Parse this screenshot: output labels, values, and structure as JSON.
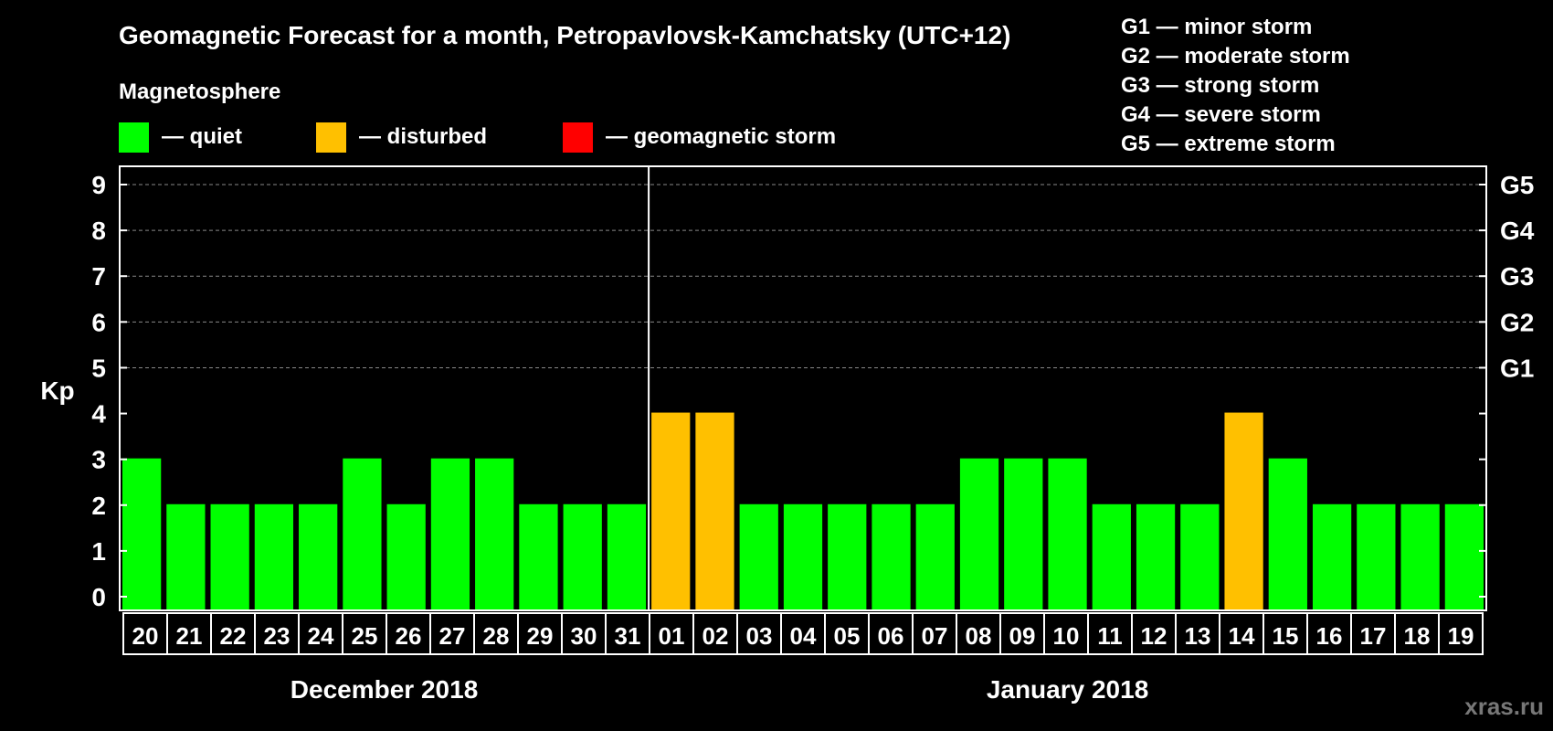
{
  "chart_data": {
    "type": "bar",
    "title": "Geomagnetic Forecast for a month, Petropavlovsk-Kamchatsky (UTC+12)",
    "legend_title": "Magnetosphere",
    "legend": [
      {
        "key": "quiet",
        "label": "— quiet",
        "color": "#00ff00"
      },
      {
        "key": "disturbed",
        "label": "— disturbed",
        "color": "#ffc000"
      },
      {
        "key": "storm",
        "label": "— geomagnetic storm",
        "color": "#ff0000"
      }
    ],
    "storm_scale": [
      "G1 — minor storm",
      "G2 — moderate storm",
      "G3 — strong storm",
      "G4 — severe storm",
      "G5 — extreme storm"
    ],
    "ylabel": "Kp",
    "ylim": [
      0,
      9
    ],
    "y_ticks": [
      "0",
      "1",
      "2",
      "3",
      "4",
      "5",
      "6",
      "7",
      "8",
      "9"
    ],
    "right_axis_labels": [
      {
        "kp": 5,
        "label": "G1"
      },
      {
        "kp": 6,
        "label": "G2"
      },
      {
        "kp": 7,
        "label": "G3"
      },
      {
        "kp": 8,
        "label": "G4"
      },
      {
        "kp": 9,
        "label": "G5"
      }
    ],
    "categories": [
      "20",
      "21",
      "22",
      "23",
      "24",
      "25",
      "26",
      "27",
      "28",
      "29",
      "30",
      "31",
      "01",
      "02",
      "03",
      "04",
      "05",
      "06",
      "07",
      "08",
      "09",
      "10",
      "11",
      "12",
      "13",
      "14",
      "15",
      "16",
      "17",
      "18",
      "19"
    ],
    "values": [
      3,
      2,
      2,
      2,
      2,
      3,
      2,
      3,
      3,
      2,
      2,
      2,
      4,
      4,
      2,
      2,
      2,
      2,
      2,
      3,
      3,
      3,
      2,
      2,
      2,
      4,
      3,
      2,
      2,
      2,
      2
    ],
    "month_groups": [
      {
        "label": "December 2018",
        "count": 12
      },
      {
        "label": "January 2018",
        "count": 19
      }
    ],
    "grid": true,
    "colors": {
      "quiet": "#00ff00",
      "disturbed": "#ffc000",
      "storm": "#ff0000",
      "background": "#000000",
      "grid": "#888888"
    },
    "thresholds": {
      "disturbed": 4,
      "storm": 5
    }
  },
  "watermark": "xras.ru"
}
